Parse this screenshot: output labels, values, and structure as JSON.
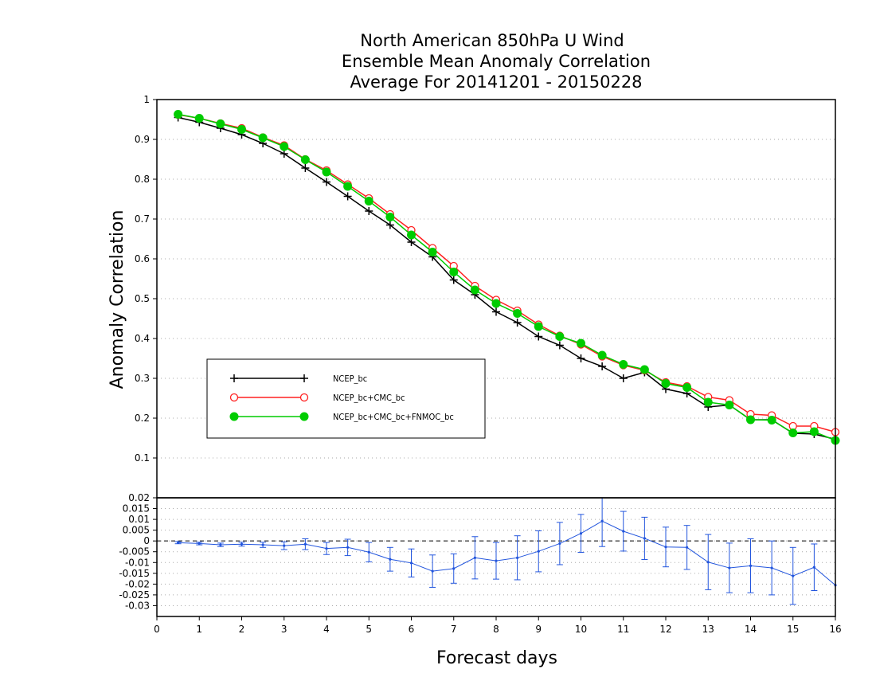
{
  "title_lines": [
    "North American 850hPa U Wind",
    "Ensemble Mean Anomaly Correlation",
    "Average For 20141201 - 20150228"
  ],
  "colors": {
    "ncep": "#000000",
    "cmc": "#ff2020",
    "fnmoc": "#00cc00",
    "diff": "#2255dd"
  },
  "chart_data": [
    {
      "type": "line",
      "ylabel": "Anomaly Correlation",
      "ylim": [
        0,
        1
      ],
      "yticks": [
        "1",
        "0.9",
        "0.8",
        "0.7",
        "0.6",
        "0.5",
        "0.4",
        "0.3",
        "0.2",
        "0.1"
      ],
      "xlim": [
        0,
        16
      ],
      "grid": true,
      "legend_position": "lower-left",
      "x": [
        0.5,
        1,
        1.5,
        2,
        2.5,
        3,
        3.5,
        4,
        4.5,
        5,
        5.5,
        6,
        6.5,
        7,
        7.5,
        8,
        8.5,
        9,
        9.5,
        10,
        10.5,
        11,
        11.5,
        12,
        12.5,
        13,
        13.5,
        14,
        14.5,
        15,
        15.5,
        16
      ],
      "series": [
        {
          "name": "NCEP_bc",
          "marker": "plus",
          "values": [
            0.955,
            0.943,
            0.928,
            0.912,
            0.89,
            0.864,
            0.828,
            0.793,
            0.757,
            0.72,
            0.685,
            0.642,
            0.605,
            0.547,
            0.51,
            0.467,
            0.44,
            0.405,
            0.383,
            0.35,
            0.33,
            0.3,
            0.315,
            0.273,
            0.262,
            0.228,
            0.233,
            0.196,
            0.196,
            0.162,
            0.16,
            0.147
          ]
        },
        {
          "name": "NCEP_bc+CMC_bc",
          "marker": "open-circle",
          "values": [
            0.962,
            0.953,
            0.94,
            0.928,
            0.905,
            0.885,
            0.85,
            0.822,
            0.787,
            0.752,
            0.712,
            0.672,
            0.627,
            0.582,
            0.532,
            0.497,
            0.47,
            0.435,
            0.407,
            0.385,
            0.355,
            0.333,
            0.32,
            0.29,
            0.28,
            0.253,
            0.245,
            0.21,
            0.207,
            0.18,
            0.18,
            0.165
          ]
        },
        {
          "name": "NCEP_bc+CMC_bc+FNMOC_bc",
          "marker": "filled-circle",
          "values": [
            0.963,
            0.953,
            0.939,
            0.925,
            0.904,
            0.882,
            0.849,
            0.818,
            0.782,
            0.745,
            0.705,
            0.66,
            0.617,
            0.567,
            0.522,
            0.488,
            0.463,
            0.43,
            0.405,
            0.388,
            0.358,
            0.335,
            0.322,
            0.287,
            0.277,
            0.24,
            0.233,
            0.196,
            0.195,
            0.163,
            0.166,
            0.144
          ]
        }
      ]
    },
    {
      "type": "line",
      "xlabel": "Forecast days",
      "ylim": [
        -0.035,
        0.02
      ],
      "yticks": [
        "0.02",
        "0.015",
        "0.01",
        "0.005",
        "0",
        "-0.005",
        "-0.01",
        "-0.015",
        "-0.02",
        "-0.025",
        "-0.03"
      ],
      "xticks": [
        "0",
        "1",
        "2",
        "3",
        "4",
        "5",
        "6",
        "7",
        "8",
        "9",
        "10",
        "11",
        "12",
        "13",
        "14",
        "15",
        "16"
      ],
      "reference_line": 0,
      "x": [
        0.5,
        1,
        1.5,
        2,
        2.5,
        3,
        3.5,
        4,
        4.5,
        5,
        5.5,
        6,
        6.5,
        7,
        7.5,
        8,
        8.5,
        9,
        9.5,
        10,
        10.5,
        11,
        11.5,
        12,
        12.5,
        13,
        13.5,
        14,
        14.5,
        15,
        15.5,
        16
      ],
      "series": [
        {
          "name": "difference",
          "values": [
            -0.0008,
            -0.0012,
            -0.0018,
            -0.0015,
            -0.0018,
            -0.0022,
            -0.0015,
            -0.0035,
            -0.003,
            -0.0052,
            -0.0085,
            -0.0102,
            -0.014,
            -0.0128,
            -0.0078,
            -0.0092,
            -0.0078,
            -0.0048,
            -0.0012,
            0.0035,
            0.0092,
            0.0045,
            0.0012,
            -0.0028,
            -0.003,
            -0.0098,
            -0.0125,
            -0.0115,
            -0.0125,
            -0.0162,
            -0.0122,
            -0.0205
          ],
          "error": [
            0.0005,
            0.0006,
            0.0008,
            0.0009,
            0.0012,
            0.0018,
            0.0025,
            0.0028,
            0.0038,
            0.0045,
            0.0055,
            0.0065,
            0.0075,
            0.0068,
            0.0098,
            0.0085,
            0.0102,
            0.0095,
            0.0098,
            0.0088,
            0.0118,
            0.0092,
            0.0098,
            0.0092,
            0.0102,
            0.0128,
            0.0115,
            0.0125,
            0.0125,
            0.0132,
            0.0108,
            0
          ]
        }
      ]
    }
  ]
}
